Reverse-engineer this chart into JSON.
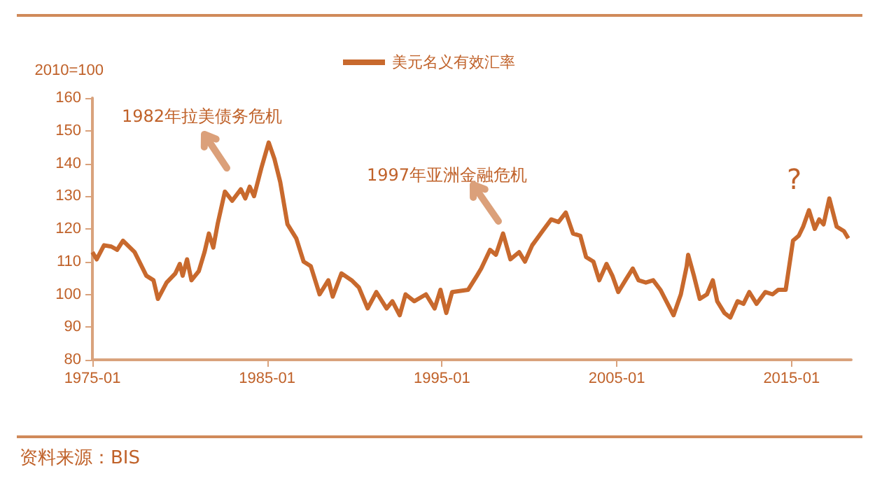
{
  "chart_data": {
    "type": "line",
    "ylabel": "2010=100",
    "x": [
      "1975-01",
      "1975-04",
      "1975-09",
      "1976-02",
      "1976-06",
      "1976-10",
      "1977-06",
      "1978-02",
      "1978-07",
      "1978-10",
      "1979-04",
      "1979-10",
      "1980-01",
      "1980-03",
      "1980-06",
      "1980-09",
      "1981-02",
      "1981-06",
      "1981-09",
      "1981-12",
      "1982-03",
      "1982-08",
      "1983-01",
      "1983-07",
      "1983-10",
      "1984-01",
      "1984-04",
      "1984-09",
      "1985-02",
      "1985-06",
      "1985-10",
      "1986-03",
      "1986-09",
      "1987-02",
      "1987-07",
      "1988-01",
      "1988-07",
      "1988-10",
      "1989-04",
      "1989-11",
      "1990-04",
      "1990-10",
      "1991-04",
      "1991-11",
      "1992-03",
      "1992-08",
      "1992-12",
      "1993-06",
      "1994-02",
      "1994-08",
      "1994-12",
      "1995-04",
      "1995-08",
      "1996-07",
      "1997-01",
      "1997-04",
      "1997-10",
      "1998-02",
      "1998-07",
      "1998-12",
      "1999-06",
      "1999-10",
      "2000-03",
      "2000-10",
      "2001-04",
      "2001-09",
      "2002-02",
      "2002-07",
      "2002-12",
      "2003-04",
      "2003-09",
      "2004-01",
      "2004-06",
      "2004-10",
      "2005-02",
      "2005-07",
      "2005-12",
      "2006-04",
      "2006-09",
      "2007-02",
      "2007-07",
      "2007-12",
      "2008-04",
      "2008-09",
      "2009-01",
      "2009-02",
      "2009-06",
      "2009-10",
      "2010-03",
      "2010-07",
      "2010-10",
      "2011-03",
      "2011-07",
      "2011-12",
      "2012-04",
      "2012-08",
      "2013-01",
      "2013-07",
      "2013-12",
      "2014-04",
      "2014-09",
      "2015-02",
      "2015-06",
      "2015-09",
      "2016-01",
      "2016-05",
      "2016-08",
      "2016-11",
      "2017-03",
      "2017-08",
      "2018-01",
      "2018-04"
    ],
    "series": [
      {
        "name": "美元名义有效汇率",
        "color": "#c8692d",
        "values": [
          112.9,
          110.7,
          115,
          114.6,
          113.6,
          116.4,
          112.9,
          105.7,
          104.3,
          98.6,
          103.6,
          106.4,
          109.3,
          105.7,
          110.7,
          104.3,
          107.1,
          112.9,
          118.6,
          114.3,
          121.4,
          131.4,
          128.6,
          132.1,
          129.3,
          132.9,
          130,
          138.6,
          146.4,
          141.4,
          134.3,
          121.4,
          117.1,
          110,
          108.6,
          100,
          104.3,
          99.3,
          106.4,
          104.3,
          102.1,
          95.7,
          100.7,
          95.7,
          97.9,
          93.6,
          100,
          97.9,
          100,
          95.7,
          101.4,
          94.3,
          100.7,
          101.4,
          105.7,
          107.9,
          113.6,
          112.1,
          118.6,
          110.7,
          112.9,
          110,
          115,
          119.3,
          122.9,
          122.1,
          125,
          118.6,
          117.9,
          111.4,
          110,
          104.3,
          109.3,
          105.7,
          100.7,
          104.3,
          107.9,
          104.3,
          103.6,
          104.3,
          101.4,
          97.1,
          93.6,
          100,
          108.6,
          112.1,
          105.7,
          98.6,
          100,
          104.3,
          97.9,
          94.3,
          92.9,
          97.9,
          97.1,
          100.7,
          97.1,
          100.7,
          100,
          101.4,
          101.4,
          116.4,
          117.9,
          120.7,
          125.7,
          120,
          122.9,
          121.4,
          129.3,
          120.7,
          119.3,
          117.1
        ]
      }
    ],
    "xlim": [
      "1975-01",
      "2018-06"
    ],
    "xticks": [
      "1975-01",
      "1985-01",
      "1995-01",
      "2005-01",
      "2015-01"
    ],
    "ylim": [
      80,
      160
    ],
    "yticks": [
      80,
      90,
      100,
      110,
      120,
      130,
      140,
      150,
      160
    ],
    "legend": "top",
    "grid": false,
    "marker": "none",
    "line_style": "solid",
    "annotations": [
      "1982年拉美债务危机",
      "1997年亚洲金融危机",
      "?",
      "资料来源：BIS"
    ]
  }
}
